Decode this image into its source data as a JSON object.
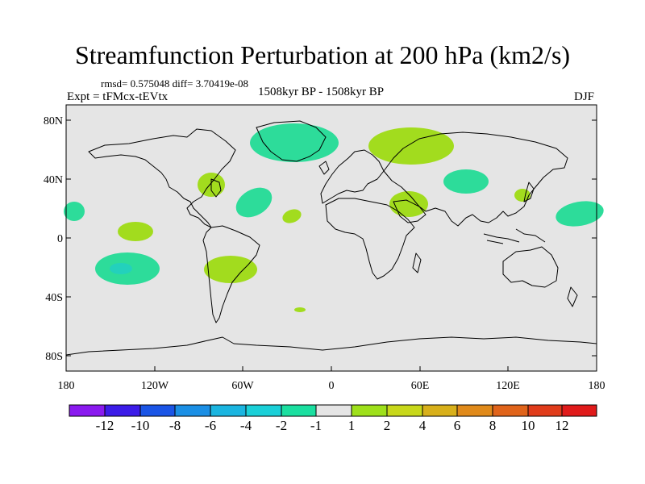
{
  "title": "Streamfunction Perturbation at 200 hPa (km2/s)",
  "stats": "rmsd= 0.575048 diff= 3.70419e-08",
  "experiment": "Expt = tFMcx-tEVtx",
  "period": "1508kyr BP - 1508kyr BP",
  "season": "DJF",
  "map": {
    "background_color": "#e5e5e5",
    "lat_labels": [
      "80N",
      "40N",
      "0",
      "40S",
      "80S"
    ],
    "lon_labels": [
      "180",
      "120W",
      "60W",
      "0",
      "60E",
      "120E",
      "180"
    ]
  },
  "colorbar": {
    "colors": [
      "#8a1aef",
      "#3c1ce8",
      "#1b55e6",
      "#1b8fe5",
      "#1bb5e0",
      "#1bd0d8",
      "#1bdfa0",
      "#e5e5e5",
      "#9ee01b",
      "#c8d81b",
      "#d8b01b",
      "#e08a1b",
      "#e0641b",
      "#e03c1b",
      "#e01b1b"
    ],
    "labels": [
      "-12",
      "-10",
      "-8",
      "-6",
      "-4",
      "-2",
      "-1",
      "1",
      "2",
      "4",
      "6",
      "8",
      "10",
      "12"
    ]
  },
  "anomalies": [
    {
      "name": "greenland",
      "color": "#2ddc9a"
    },
    {
      "name": "siberia",
      "color": "#a2dc1e"
    },
    {
      "name": "central-asia",
      "color": "#2ddc9a"
    },
    {
      "name": "us-east",
      "color": "#a2dc1e"
    },
    {
      "name": "n-atlantic",
      "color": "#2ddc9a"
    },
    {
      "name": "arabia",
      "color": "#a2dc1e"
    },
    {
      "name": "w-africa-atl",
      "color": "#a2dc1e"
    },
    {
      "name": "japan",
      "color": "#a2dc1e"
    },
    {
      "name": "e-pacific-n",
      "color": "#2ddc9a"
    },
    {
      "name": "w-pacific-n",
      "color": "#2ddc9a"
    },
    {
      "name": "c-pacific-eq",
      "color": "#a2dc1e"
    },
    {
      "name": "s-pacific",
      "color": "#2ddc9a"
    },
    {
      "name": "s-america",
      "color": "#a2dc1e"
    },
    {
      "name": "s-atlantic",
      "color": "#a2dc1e"
    }
  ]
}
